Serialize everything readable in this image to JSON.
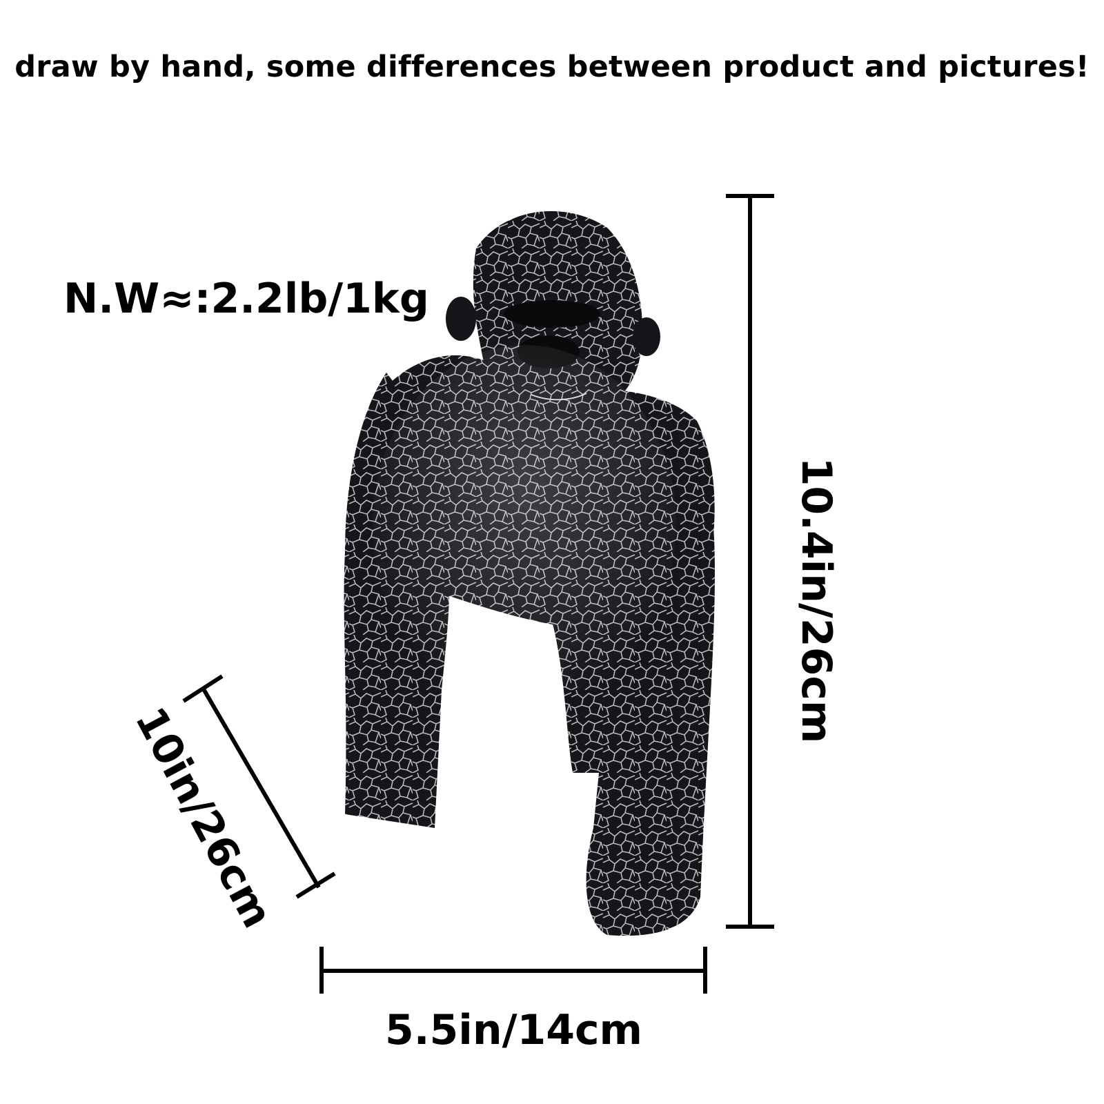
{
  "notice": "draw by hand, some differences between product and pictures!",
  "net_weight": "N.W≈:2.2lb/1kg",
  "dimensions": {
    "height": "10.4in/26cm",
    "width": "5.5in/14cm",
    "depth": "10in/26cm"
  },
  "figure": {
    "icon": "gorilla-figurine",
    "colors": {
      "body": "#17141a",
      "crackle": "#d9d6dc"
    }
  }
}
